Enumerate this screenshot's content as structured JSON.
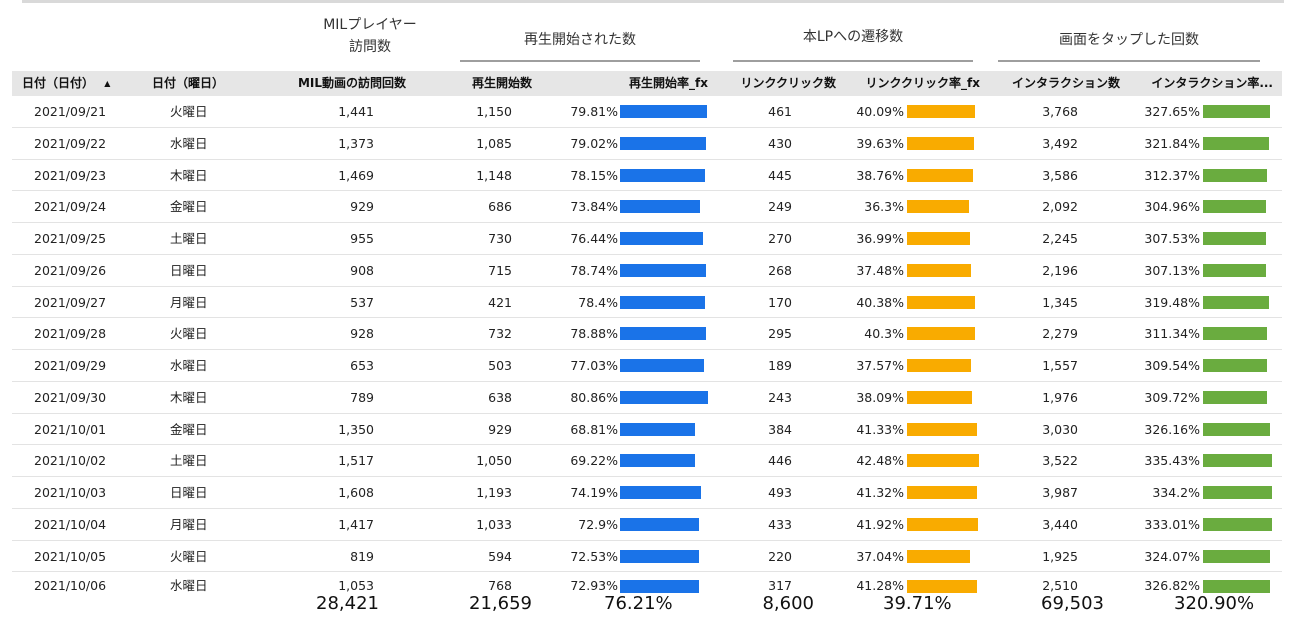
{
  "group_headers": {
    "visits": [
      "MILプレイヤー",
      "訪問数"
    ],
    "plays": "再生開始された数",
    "lp": "本LPへの遷移数",
    "taps": "画面をタップした回数"
  },
  "columns": {
    "date": "日付（日付）",
    "sort_icon": "▲",
    "weekday": "日付（曜日）",
    "visits": "MIL動画の訪問回数",
    "plays": "再生開始数",
    "play_rate": "再生開始率_fx",
    "clicks": "リンククリック数",
    "click_rate": "リンククリック率_fx",
    "interactions": "インタラクション数",
    "interaction_rate": "インタラクション率..."
  },
  "colors": {
    "play_bar": "#1a73e8",
    "click_bar": "#f9ab00",
    "interaction_bar": "#6aac3f"
  },
  "rows": [
    {
      "date": "2021/09/21",
      "weekday": "火曜日",
      "visits": "1,441",
      "plays": "1,150",
      "play_rate": "79.81%",
      "play_rate_value": 79.81,
      "clicks": "461",
      "click_rate": "40.09%",
      "click_rate_value": 40.09,
      "interactions": "3,768",
      "interaction_rate": "327.65%",
      "interaction_rate_value": 327.65
    },
    {
      "date": "2021/09/22",
      "weekday": "水曜日",
      "visits": "1,373",
      "plays": "1,085",
      "play_rate": "79.02%",
      "play_rate_value": 79.02,
      "clicks": "430",
      "click_rate": "39.63%",
      "click_rate_value": 39.63,
      "interactions": "3,492",
      "interaction_rate": "321.84%",
      "interaction_rate_value": 321.84
    },
    {
      "date": "2021/09/23",
      "weekday": "木曜日",
      "visits": "1,469",
      "plays": "1,148",
      "play_rate": "78.15%",
      "play_rate_value": 78.15,
      "clicks": "445",
      "click_rate": "38.76%",
      "click_rate_value": 38.76,
      "interactions": "3,586",
      "interaction_rate": "312.37%",
      "interaction_rate_value": 312.37
    },
    {
      "date": "2021/09/24",
      "weekday": "金曜日",
      "visits": "929",
      "plays": "686",
      "play_rate": "73.84%",
      "play_rate_value": 73.84,
      "clicks": "249",
      "click_rate": "36.3%",
      "click_rate_value": 36.3,
      "interactions": "2,092",
      "interaction_rate": "304.96%",
      "interaction_rate_value": 304.96
    },
    {
      "date": "2021/09/25",
      "weekday": "土曜日",
      "visits": "955",
      "plays": "730",
      "play_rate": "76.44%",
      "play_rate_value": 76.44,
      "clicks": "270",
      "click_rate": "36.99%",
      "click_rate_value": 36.99,
      "interactions": "2,245",
      "interaction_rate": "307.53%",
      "interaction_rate_value": 307.53
    },
    {
      "date": "2021/09/26",
      "weekday": "日曜日",
      "visits": "908",
      "plays": "715",
      "play_rate": "78.74%",
      "play_rate_value": 78.74,
      "clicks": "268",
      "click_rate": "37.48%",
      "click_rate_value": 37.48,
      "interactions": "2,196",
      "interaction_rate": "307.13%",
      "interaction_rate_value": 307.13
    },
    {
      "date": "2021/09/27",
      "weekday": "月曜日",
      "visits": "537",
      "plays": "421",
      "play_rate": "78.4%",
      "play_rate_value": 78.4,
      "clicks": "170",
      "click_rate": "40.38%",
      "click_rate_value": 40.38,
      "interactions": "1,345",
      "interaction_rate": "319.48%",
      "interaction_rate_value": 319.48
    },
    {
      "date": "2021/09/28",
      "weekday": "火曜日",
      "visits": "928",
      "plays": "732",
      "play_rate": "78.88%",
      "play_rate_value": 78.88,
      "clicks": "295",
      "click_rate": "40.3%",
      "click_rate_value": 40.3,
      "interactions": "2,279",
      "interaction_rate": "311.34%",
      "interaction_rate_value": 311.34
    },
    {
      "date": "2021/09/29",
      "weekday": "水曜日",
      "visits": "653",
      "plays": "503",
      "play_rate": "77.03%",
      "play_rate_value": 77.03,
      "clicks": "189",
      "click_rate": "37.57%",
      "click_rate_value": 37.57,
      "interactions": "1,557",
      "interaction_rate": "309.54%",
      "interaction_rate_value": 309.54
    },
    {
      "date": "2021/09/30",
      "weekday": "木曜日",
      "visits": "789",
      "plays": "638",
      "play_rate": "80.86%",
      "play_rate_value": 80.86,
      "clicks": "243",
      "click_rate": "38.09%",
      "click_rate_value": 38.09,
      "interactions": "1,976",
      "interaction_rate": "309.72%",
      "interaction_rate_value": 309.72
    },
    {
      "date": "2021/10/01",
      "weekday": "金曜日",
      "visits": "1,350",
      "plays": "929",
      "play_rate": "68.81%",
      "play_rate_value": 68.81,
      "clicks": "384",
      "click_rate": "41.33%",
      "click_rate_value": 41.33,
      "interactions": "3,030",
      "interaction_rate": "326.16%",
      "interaction_rate_value": 326.16
    },
    {
      "date": "2021/10/02",
      "weekday": "土曜日",
      "visits": "1,517",
      "plays": "1,050",
      "play_rate": "69.22%",
      "play_rate_value": 69.22,
      "clicks": "446",
      "click_rate": "42.48%",
      "click_rate_value": 42.48,
      "interactions": "3,522",
      "interaction_rate": "335.43%",
      "interaction_rate_value": 335.43
    },
    {
      "date": "2021/10/03",
      "weekday": "日曜日",
      "visits": "1,608",
      "plays": "1,193",
      "play_rate": "74.19%",
      "play_rate_value": 74.19,
      "clicks": "493",
      "click_rate": "41.32%",
      "click_rate_value": 41.32,
      "interactions": "3,987",
      "interaction_rate": "334.2%",
      "interaction_rate_value": 334.2
    },
    {
      "date": "2021/10/04",
      "weekday": "月曜日",
      "visits": "1,417",
      "plays": "1,033",
      "play_rate": "72.9%",
      "play_rate_value": 72.9,
      "clicks": "433",
      "click_rate": "41.92%",
      "click_rate_value": 41.92,
      "interactions": "3,440",
      "interaction_rate": "333.01%",
      "interaction_rate_value": 333.01
    },
    {
      "date": "2021/10/05",
      "weekday": "火曜日",
      "visits": "819",
      "plays": "594",
      "play_rate": "72.53%",
      "play_rate_value": 72.53,
      "clicks": "220",
      "click_rate": "37.04%",
      "click_rate_value": 37.04,
      "interactions": "1,925",
      "interaction_rate": "324.07%",
      "interaction_rate_value": 324.07
    },
    {
      "date": "2021/10/06",
      "weekday": "水曜日",
      "visits": "1,053",
      "plays": "768",
      "play_rate": "72.93%",
      "play_rate_value": 72.93,
      "clicks": "317",
      "click_rate": "41.28%",
      "click_rate_value": 41.28,
      "interactions": "2,510",
      "interaction_rate": "326.82%",
      "interaction_rate_value": 326.82
    }
  ],
  "totals": {
    "visits": "28,421",
    "plays": "21,659",
    "play_rate": "76.21%",
    "clicks": "8,600",
    "click_rate": "39.71%",
    "interactions": "69,503",
    "interaction_rate": "320.90%"
  }
}
